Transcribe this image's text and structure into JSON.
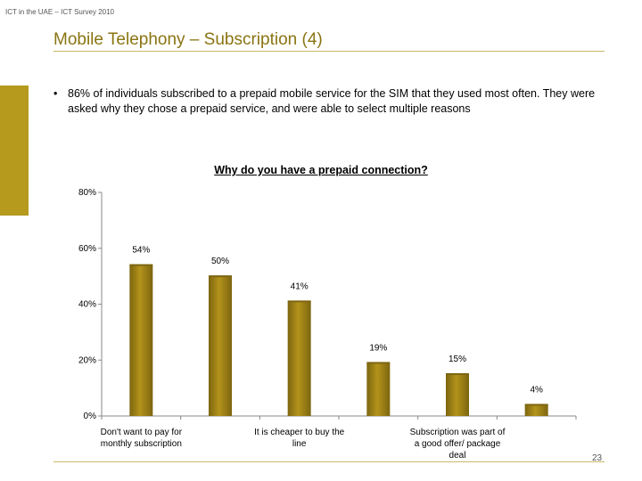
{
  "header": {
    "note": "ICT in the UAE – ICT Survey 2010"
  },
  "title": "Mobile Telephony – Subscription (4)",
  "bullet": "86% of individuals subscribed to a prepaid mobile service for the SIM that they used most often. They were asked why they chose a prepaid service, and were able to select multiple reasons",
  "page_number": "23",
  "colors": {
    "bar": "#b3931a",
    "bar_dark": "#7d6510",
    "accent": "#b59a1e",
    "title": "#8a7412"
  },
  "chart_data": {
    "type": "bar",
    "title": "Why do you have a prepaid connection?",
    "xlabel": "",
    "ylabel": "",
    "ylim": [
      0,
      80
    ],
    "yticks": [
      0,
      20,
      40,
      60,
      80
    ],
    "ytick_labels": [
      "0%",
      "20%",
      "40%",
      "60%",
      "80%"
    ],
    "categories": [
      "Don't want to pay for monthly subscription",
      "",
      "It is cheaper to buy the line",
      "",
      "Subscription was part of a good offer/ package deal",
      ""
    ],
    "values": [
      54,
      50,
      41,
      19,
      15,
      4
    ],
    "value_labels": [
      "54%",
      "50%",
      "41%",
      "19%",
      "15%",
      "4%"
    ],
    "grid": false
  }
}
